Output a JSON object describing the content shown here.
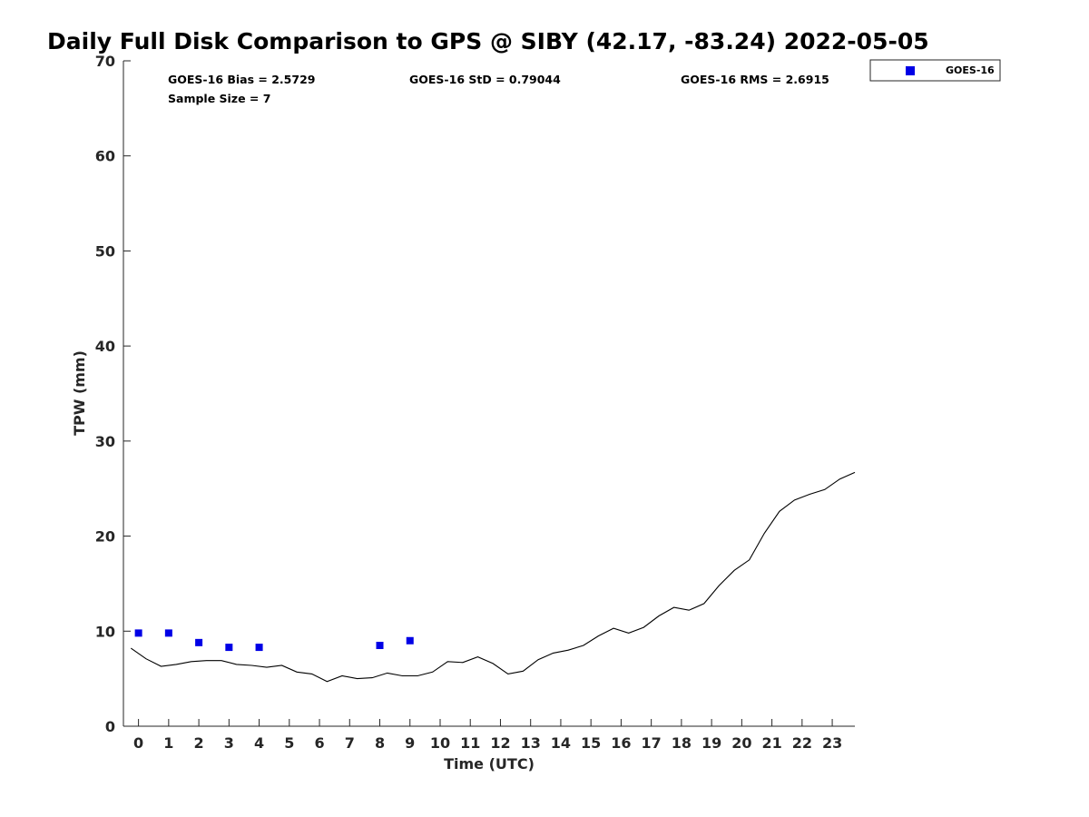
{
  "chart_data": {
    "type": "scatter",
    "title": "Daily Full Disk Comparison to GPS @ SIBY (42.17, -83.24) 2022-05-05",
    "xlabel": "Time (UTC)",
    "ylabel": "TPW (mm)",
    "xlim": [
      -0.5,
      23.75
    ],
    "ylim": [
      0,
      70
    ],
    "x_ticks": [
      "0",
      "1",
      "2",
      "3",
      "4",
      "5",
      "6",
      "7",
      "8",
      "9",
      "10",
      "11",
      "12",
      "13",
      "14",
      "15",
      "16",
      "17",
      "18",
      "19",
      "20",
      "21",
      "22",
      "23"
    ],
    "y_ticks": [
      "0",
      "10",
      "20",
      "30",
      "40",
      "50",
      "60",
      "70"
    ],
    "grid": false,
    "legend": {
      "position": "top-right",
      "entries": [
        "GOES-16"
      ]
    },
    "stats": {
      "bias": "GOES-16 Bias = 2.5729",
      "std": "GOES-16 StD = 0.79044",
      "rms": "GOES-16 RMS = 2.6915",
      "sample_size": "Sample Size = 7"
    },
    "series": [
      {
        "name": "GOES-16",
        "kind": "markers",
        "color": "#0000e6",
        "x": [
          0,
          1,
          2,
          3,
          4,
          8,
          9
        ],
        "y": [
          9.8,
          9.8,
          8.8,
          8.3,
          8.3,
          8.5,
          9.0
        ]
      },
      {
        "kind": "line",
        "color": "#000000",
        "x": [
          -0.25,
          0.25,
          0.75,
          1.25,
          1.75,
          2.25,
          2.75,
          3.25,
          3.75,
          4.25,
          4.75,
          5.25,
          5.75,
          6.25,
          6.75,
          7.25,
          7.75,
          8.25,
          8.75,
          9.25,
          9.75,
          10.25,
          10.75,
          11.25,
          11.75,
          12.25,
          12.75,
          13.25,
          13.75,
          14.25,
          14.75,
          15.25,
          15.75,
          16.25,
          16.75,
          17.25,
          17.75,
          18.25,
          18.75,
          19.25,
          19.75,
          20.25,
          20.75,
          21.25,
          21.75,
          22.25,
          22.75,
          23.25,
          23.75
        ],
        "y": [
          8.2,
          7.1,
          6.3,
          6.5,
          6.8,
          6.9,
          6.9,
          6.5,
          6.4,
          6.2,
          6.4,
          5.7,
          5.5,
          4.7,
          5.3,
          5.0,
          5.1,
          5.6,
          5.3,
          5.3,
          5.7,
          6.8,
          6.7,
          7.3,
          6.6,
          5.5,
          5.8,
          7.0,
          7.7,
          8.0,
          8.5,
          9.5,
          10.3,
          9.8,
          10.4,
          11.6,
          12.5,
          12.2,
          12.9,
          14.8,
          16.4,
          17.5,
          20.3,
          22.6,
          23.8,
          24.4,
          24.9,
          26.0,
          26.7
        ]
      }
    ]
  }
}
